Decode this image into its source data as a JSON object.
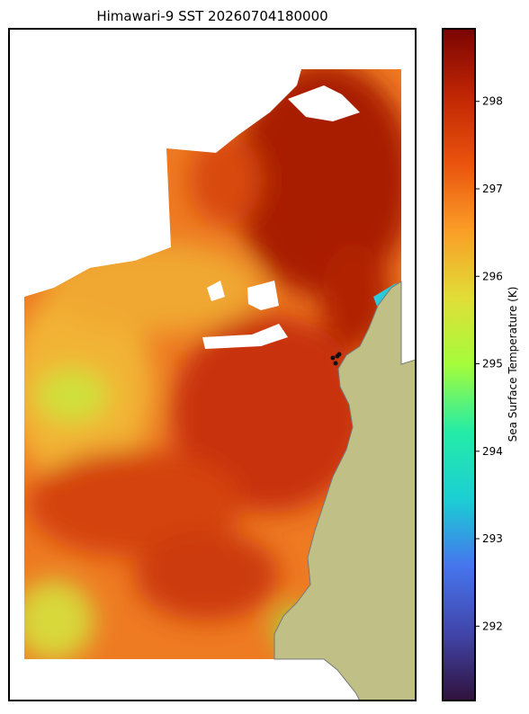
{
  "title": "Himawari-9 SST 20260704180000",
  "colorbar": {
    "label": "Sea Surface Temperature (K)",
    "lim": [
      291.15,
      298.83
    ],
    "ticks": [
      292,
      293,
      294,
      295,
      296,
      297,
      298
    ]
  }
}
